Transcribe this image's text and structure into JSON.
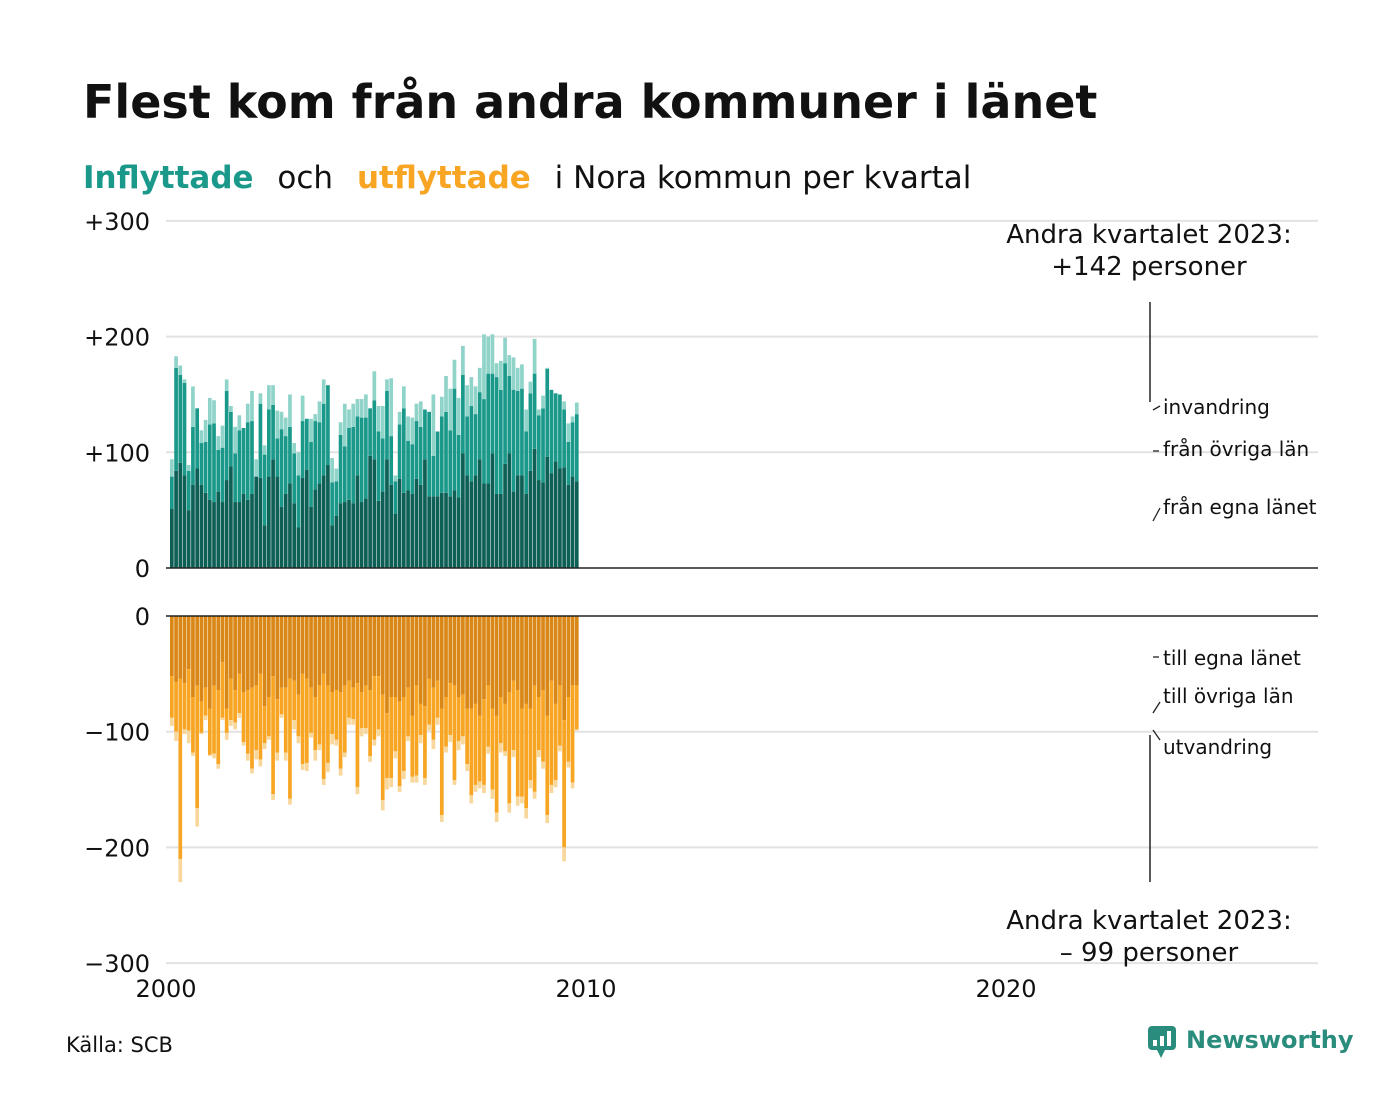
{
  "colors": {
    "in_egna": "#0e5f55",
    "in_ovriga": "#1a998a",
    "invandring": "#8fd3c9",
    "ut_egna": "#d98716",
    "ut_ovriga": "#f7a522",
    "utvandring": "#f8d79c",
    "title": "#111111",
    "text": "#111111",
    "grid": "#e2e2e2",
    "brand": "#2a8c7c"
  },
  "title": "Flest kom från andra kommuner i länet",
  "subtitle": {
    "part_in": "Inflyttade",
    "part_och": "och",
    "part_ut": "utflyttade",
    "part_rest": "i Nora kommun per kvartal"
  },
  "source": "Källa: SCB",
  "brand": "Newsworthy",
  "annotation_top": {
    "line1": "Andra kvartalet 2023:",
    "line2": "+142 personer"
  },
  "annotation_bottom": {
    "line1": "Andra kvartalet 2023:",
    "line2": "– 99 personer"
  },
  "chart_data": {
    "type": "bar",
    "stacked": true,
    "x_ticks": [
      "2000",
      "2010",
      "2020"
    ],
    "upper": {
      "y_ticks": [
        "+300",
        "+200",
        "+100",
        "0"
      ],
      "ylim": [
        0,
        300
      ],
      "series": [
        {
          "name": "från egna länet",
          "values": [
            51,
            84,
            91,
            80,
            50,
            72,
            86,
            72,
            65,
            59,
            57,
            66,
            57,
            76,
            88,
            57,
            57,
            64,
            59,
            64,
            79,
            78,
            37,
            79,
            94,
            79,
            53,
            64,
            73,
            56,
            35,
            78,
            85,
            53,
            68,
            73,
            80,
            89,
            37,
            45,
            56,
            57,
            59,
            56,
            80,
            57,
            60,
            97,
            94,
            58,
            66,
            94,
            72,
            47,
            77,
            65,
            67,
            64,
            77,
            72,
            94,
            62,
            62,
            62,
            65,
            65,
            62,
            67,
            61,
            99,
            80,
            75,
            80,
            94,
            73,
            73,
            99,
            64,
            64,
            90,
            99,
            66,
            80,
            80,
            64,
            84,
            103,
            76,
            74,
            96,
            82,
            92,
            86,
            87,
            72,
            79,
            75
          ]
        },
        {
          "name": "från övriga län",
          "values": [
            28,
            89,
            76,
            80,
            34,
            50,
            52,
            36,
            44,
            65,
            68,
            36,
            47,
            77,
            47,
            42,
            62,
            57,
            67,
            63,
            0,
            64,
            61,
            58,
            47,
            33,
            67,
            50,
            49,
            43,
            45,
            49,
            44,
            56,
            59,
            53,
            62,
            69,
            37,
            30,
            59,
            48,
            62,
            66,
            51,
            73,
            70,
            41,
            51,
            60,
            46,
            59,
            42,
            28,
            47,
            73,
            43,
            43,
            50,
            50,
            43,
            73,
            35,
            56,
            66,
            70,
            57,
            88,
            54,
            68,
            51,
            65,
            53,
            58,
            73,
            95,
            69,
            101,
            90,
            87,
            67,
            88,
            73,
            75,
            54,
            67,
            65,
            56,
            64,
            76,
            72,
            59,
            64,
            50,
            37,
            47,
            58
          ]
        },
        {
          "name": "invandring",
          "values": [
            15,
            10,
            8,
            3,
            5,
            35,
            0,
            11,
            19,
            23,
            20,
            12,
            19,
            10,
            5,
            23,
            13,
            0,
            16,
            26,
            15,
            9,
            8,
            21,
            17,
            24,
            15,
            16,
            28,
            9,
            20,
            22,
            0,
            20,
            6,
            18,
            21,
            0,
            21,
            11,
            11,
            37,
            16,
            20,
            15,
            16,
            20,
            0,
            25,
            22,
            28,
            10,
            50,
            5,
            11,
            19,
            21,
            23,
            15,
            22,
            0,
            0,
            53,
            0,
            17,
            31,
            36,
            25,
            32,
            25,
            27,
            25,
            24,
            21,
            56,
            32,
            34,
            12,
            25,
            22,
            18,
            28,
            20,
            21,
            19,
            10,
            30,
            5,
            11,
            1,
            0,
            0,
            0,
            7,
            16,
            5,
            10
          ]
        }
      ]
    },
    "lower": {
      "y_ticks": [
        "0",
        "−100",
        "−200",
        "−300"
      ],
      "ylim": [
        -300,
        0
      ],
      "series": [
        {
          "name": "till egna länet",
          "values": [
            -52,
            -57,
            -54,
            -58,
            -46,
            -70,
            -60,
            -74,
            -62,
            -80,
            -60,
            -64,
            -40,
            -80,
            -54,
            -64,
            -50,
            -66,
            -64,
            -62,
            -60,
            -50,
            -78,
            -70,
            -52,
            -72,
            -62,
            -62,
            -54,
            -56,
            -68,
            -50,
            -54,
            -62,
            -70,
            -60,
            -50,
            -60,
            -66,
            -64,
            -66,
            -60,
            -56,
            -62,
            -58,
            -66,
            -60,
            -64,
            -52,
            -52,
            -68,
            -84,
            -70,
            -70,
            -74,
            -70,
            -62,
            -86,
            -60,
            -76,
            -78,
            -54,
            -62,
            -56,
            -80,
            -70,
            -58,
            -60,
            -70,
            -68,
            -80,
            -80,
            -76,
            -86,
            -72,
            -60,
            -80,
            -86,
            -70,
            -76,
            -66,
            -56,
            -64,
            -80,
            -76,
            -80,
            -60,
            -70,
            -64,
            -86,
            -56,
            -76,
            -60,
            -90,
            -70,
            -60,
            -60
          ]
        },
        {
          "name": "till övriga län",
          "values": [
            -36,
            -43,
            -156,
            -40,
            -53,
            -48,
            -106,
            -27,
            -24,
            -40,
            -59,
            -64,
            -48,
            -21,
            -36,
            -28,
            -34,
            -43,
            -55,
            -70,
            -56,
            -74,
            -32,
            -34,
            -102,
            -46,
            -23,
            -56,
            -104,
            -34,
            -36,
            -78,
            -73,
            -39,
            -46,
            -51,
            -91,
            -67,
            -36,
            -43,
            -66,
            -58,
            -32,
            -27,
            -90,
            -31,
            -37,
            -57,
            -55,
            -46,
            -91,
            -56,
            -70,
            -47,
            -73,
            -64,
            -42,
            -53,
            -78,
            -27,
            -62,
            -40,
            -45,
            -32,
            -92,
            -43,
            -45,
            -82,
            -38,
            -36,
            -48,
            -75,
            -70,
            -57,
            -74,
            -53,
            -70,
            -84,
            -40,
            -41,
            -96,
            -60,
            -92,
            -76,
            -90,
            -62,
            -92,
            -46,
            -62,
            -86,
            -90,
            -66,
            -52,
            -110,
            -56,
            -84,
            -38
          ]
        },
        {
          "name": "utvandring",
          "values": [
            -7,
            -8,
            -20,
            -4,
            -11,
            -3,
            -16,
            -1,
            -4,
            -1,
            -4,
            -4,
            -2,
            -6,
            -5,
            -6,
            -4,
            -3,
            -6,
            -4,
            -8,
            -6,
            -5,
            -3,
            -5,
            -7,
            -3,
            -7,
            -5,
            -8,
            -6,
            -5,
            -7,
            -4,
            -9,
            -5,
            -5,
            -8,
            -9,
            -5,
            -6,
            -4,
            -6,
            -5,
            -6,
            -7,
            -5,
            -5,
            -5,
            -6,
            -9,
            -10,
            -8,
            -6,
            -5,
            -7,
            -4,
            -5,
            -6,
            -7,
            -6,
            -5,
            -8,
            -6,
            -6,
            -5,
            -6,
            -4,
            -8,
            -7,
            -6,
            -7,
            -6,
            -6,
            -7,
            -6,
            -8,
            -8,
            -8,
            -4,
            -8,
            -6,
            -8,
            -6,
            -9,
            -7,
            -6,
            -6,
            -6,
            -7,
            -7,
            -6,
            -5,
            -12,
            -5,
            -5,
            -1
          ]
        }
      ]
    },
    "labels_upper": [
      "invandring",
      "från övriga län",
      "från egna länet"
    ],
    "labels_lower": [
      "till egna länet",
      "till övriga län",
      "utvandring"
    ]
  }
}
